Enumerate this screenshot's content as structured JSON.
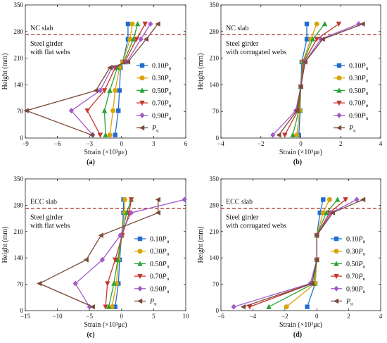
{
  "series_styles": [
    {
      "label": "0.10",
      "color": "#1f6fd1",
      "marker": "square"
    },
    {
      "label": "0.30",
      "color": "#d9a406",
      "marker": "circle"
    },
    {
      "label": "0.50",
      "color": "#27a337",
      "marker": "triangle-up"
    },
    {
      "label": "0.70",
      "color": "#c3382a",
      "marker": "triangle-down"
    },
    {
      "label": "0.90",
      "color": "#a35ac8",
      "marker": "diamond"
    },
    {
      "label": "",
      "color": "#7b4a3a",
      "marker": "triangle-left"
    }
  ],
  "legend_symbol": "P",
  "legend_subscript": "u",
  "boundary_line_color": "#a63a2c",
  "chart_data": [
    {
      "type": "line",
      "caption": "(a)",
      "slab_label": "NC slab",
      "girder_label": [
        "Steel girder",
        "with flat webs"
      ],
      "xlabel": "Strain (×10³με)",
      "ylabel": "Height (mm)",
      "xlim": [
        -9,
        6
      ],
      "xticks": [
        -9,
        -6,
        -3,
        0,
        3,
        6
      ],
      "ylim": [
        0,
        350
      ],
      "yticks": [
        0,
        70,
        140,
        210,
        280,
        350
      ],
      "interface_height": 272,
      "heights": [
        8,
        72,
        125,
        185,
        200,
        260,
        300
      ],
      "series": [
        {
          "values": [
            -0.6,
            -0.3,
            -0.2,
            -0.1,
            0.1,
            0.6,
            0.6
          ]
        },
        {
          "values": [
            -1.1,
            -0.8,
            -0.6,
            -0.2,
            0.1,
            0.8,
            1.0
          ]
        },
        {
          "values": [
            -1.5,
            -1.6,
            -1.1,
            -0.4,
            0.2,
            1.1,
            1.5
          ]
        },
        {
          "values": [
            -2.0,
            -3.2,
            -1.6,
            -0.6,
            0.3,
            1.4,
            2.2
          ]
        },
        {
          "values": [
            -2.7,
            -4.7,
            -2.0,
            -0.9,
            0.5,
            1.8,
            2.7
          ]
        },
        {
          "values": [
            -2.8,
            -8.9,
            -2.4,
            -1.1,
            0.6,
            2.3,
            3.4
          ]
        }
      ]
    },
    {
      "type": "line",
      "caption": "(b)",
      "slab_label": "NC slab",
      "girder_label": [
        "Steel girder",
        "with corrugated webs"
      ],
      "xlabel": "Strain (×10³με)",
      "ylabel": "Height (mm)",
      "xlim": [
        -4,
        4
      ],
      "xticks": [
        -4,
        -2,
        0,
        2,
        4
      ],
      "ylim": [
        0,
        350
      ],
      "yticks": [
        0,
        70,
        140,
        210,
        280,
        350
      ],
      "interface_height": 272,
      "heights": [
        8,
        72,
        135,
        200,
        260,
        300
      ],
      "series": [
        {
          "values": [
            -0.1,
            -0.03,
            0.0,
            0.05,
            0.3,
            0.3
          ]
        },
        {
          "values": [
            -0.2,
            -0.05,
            0.0,
            0.1,
            0.5,
            0.8
          ]
        },
        {
          "values": [
            -0.4,
            -0.1,
            0.0,
            0.12,
            0.6,
            1.2
          ]
        },
        {
          "values": [
            -0.8,
            -0.15,
            0.0,
            0.15,
            0.8,
            1.9
          ]
        },
        {
          "values": [
            -1.4,
            -0.25,
            0.0,
            0.2,
            1.0,
            2.9
          ]
        },
        {
          "values": [
            -1.1,
            -0.2,
            0.0,
            0.22,
            1.1,
            3.1
          ]
        }
      ]
    },
    {
      "type": "line",
      "caption": "(c)",
      "slab_label": "ECC slab",
      "girder_label": [
        "Steel girder",
        "with flat webs"
      ],
      "xlabel": "Strain (×10³με)",
      "ylabel": "Height (mm)",
      "xlim": [
        -15,
        10
      ],
      "xticks": [
        -15,
        -10,
        -5,
        0,
        5,
        10
      ],
      "ylim": [
        0,
        350
      ],
      "yticks": [
        0,
        70,
        140,
        210,
        280,
        350
      ],
      "interface_height": 272,
      "heights": [
        10,
        72,
        135,
        200,
        260,
        295
      ],
      "series": [
        {
          "values": [
            -1.0,
            -0.5,
            -0.3,
            0.0,
            0.3,
            0.3
          ]
        },
        {
          "values": [
            -1.5,
            -0.8,
            -0.5,
            0.0,
            0.5,
            0.5
          ]
        },
        {
          "values": [
            -2.0,
            -1.2,
            -0.6,
            0.0,
            0.8,
            1.5
          ]
        },
        {
          "values": [
            -2.5,
            -2.2,
            -1.0,
            0.1,
            1.2,
            1.5
          ]
        },
        {
          "values": [
            -5.0,
            -7.2,
            -3.0,
            -0.2,
            1.5,
            9.8
          ]
        },
        {
          "values": [
            -4.5,
            -12.8,
            -5.5,
            -3.2,
            5.7,
            5.7
          ]
        }
      ]
    },
    {
      "type": "line",
      "caption": "(d)",
      "slab_label": "ECC slab",
      "girder_label": [
        "Steel girder",
        "with corrugated webs"
      ],
      "xlabel": "Strain (×10³με)",
      "ylabel": "Height (mm)",
      "xlim": [
        -6,
        4
      ],
      "xticks": [
        -6,
        -4,
        -2,
        0,
        2,
        4
      ],
      "ylim": [
        0,
        350
      ],
      "yticks": [
        0,
        70,
        140,
        210,
        280,
        350
      ],
      "interface_height": 272,
      "heights": [
        10,
        72,
        135,
        200,
        260,
        295
      ],
      "series": [
        {
          "values": [
            -0.6,
            -0.1,
            0.0,
            0.0,
            0.2,
            0.4
          ]
        },
        {
          "values": [
            -1.9,
            -0.1,
            0.0,
            0.0,
            0.4,
            0.8
          ]
        },
        {
          "values": [
            -3.0,
            -0.2,
            0.0,
            0.0,
            0.6,
            1.3
          ]
        },
        {
          "values": [
            -4.2,
            -0.3,
            0.0,
            0.0,
            0.8,
            1.8
          ]
        },
        {
          "values": [
            -5.2,
            -0.4,
            0.0,
            0.0,
            0.9,
            2.5
          ]
        },
        {
          "values": [
            -4.6,
            -0.3,
            0.0,
            0.0,
            1.0,
            2.9
          ]
        }
      ]
    }
  ]
}
